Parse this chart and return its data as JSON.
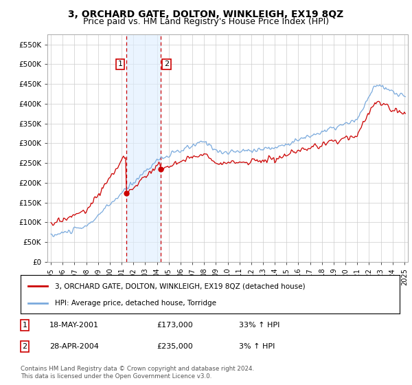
{
  "title": "3, ORCHARD GATE, DOLTON, WINKLEIGH, EX19 8QZ",
  "subtitle": "Price paid vs. HM Land Registry's House Price Index (HPI)",
  "legend_line1": "3, ORCHARD GATE, DOLTON, WINKLEIGH, EX19 8QZ (detached house)",
  "legend_line2": "HPI: Average price, detached house, Torridge",
  "annotation1_label": "1",
  "annotation1_date": "18-MAY-2001",
  "annotation1_price": "£173,000",
  "annotation1_hpi": "33% ↑ HPI",
  "annotation2_label": "2",
  "annotation2_date": "28-APR-2004",
  "annotation2_price": "£235,000",
  "annotation2_hpi": "3% ↑ HPI",
  "footnote": "Contains HM Land Registry data © Crown copyright and database right 2024.\nThis data is licensed under the Open Government Licence v3.0.",
  "sale1_year": 2001.38,
  "sale1_price": 173000,
  "sale2_year": 2004.33,
  "sale2_price": 235000,
  "bg_color": "#ffffff",
  "grid_color": "#cccccc",
  "hpi_color": "#7aaadd",
  "price_color": "#cc0000",
  "shade_color": "#ddeeff",
  "title_fontsize": 10,
  "subtitle_fontsize": 9,
  "ylim": [
    0,
    575000
  ],
  "xlim_start": 1994.7,
  "xlim_end": 2025.3
}
